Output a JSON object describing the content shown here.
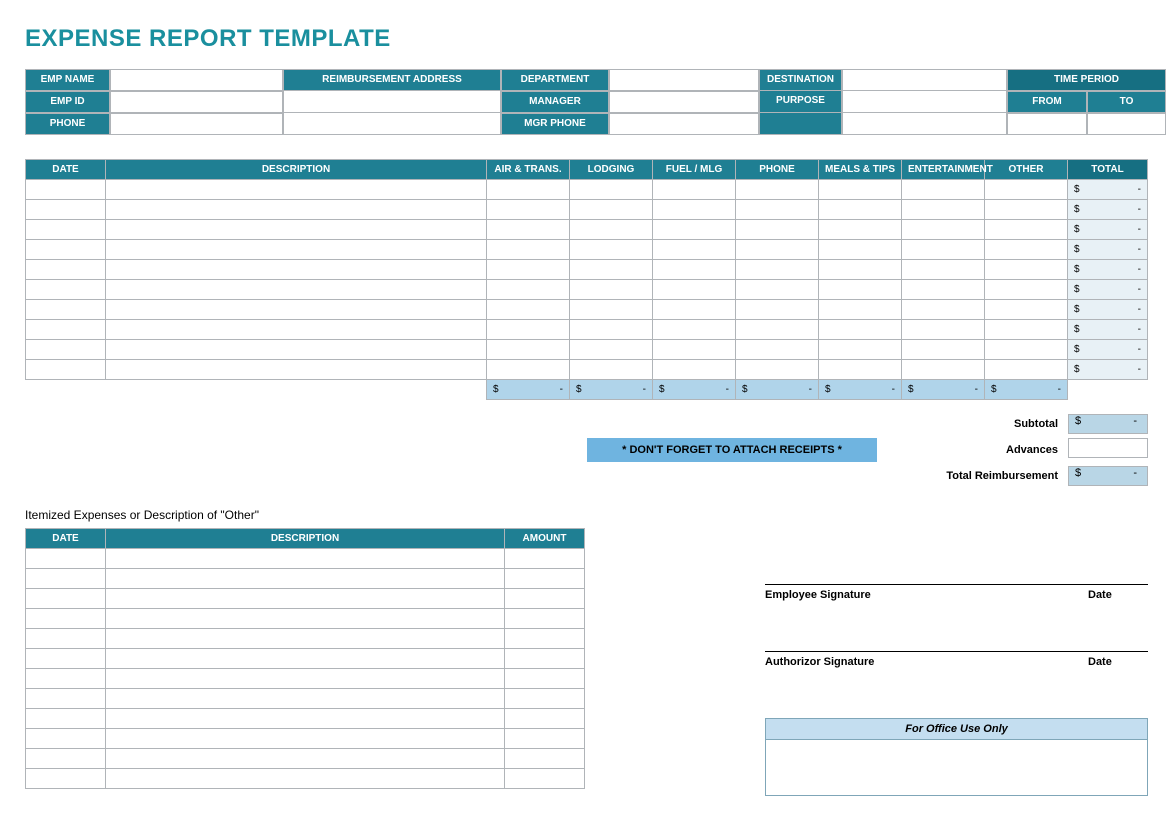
{
  "colors": {
    "title": "#1a8f9e",
    "header": "#1f7f93",
    "header_dark": "#166f82",
    "sum_row_bg": "#b0d4ea",
    "receipts_bg": "#6fb4e0",
    "office_bg": "#c4def0",
    "total_bg": "#e8f1f6",
    "subtotal_bg": "#b9d6e6",
    "reimb_bg": "#b9d6e6",
    "grid": "#b0b4b8"
  },
  "title": "EXPENSE REPORT TEMPLATE",
  "info": {
    "emp_name_label": "EMP NAME",
    "emp_id_label": "EMP ID",
    "phone_label": "PHONE",
    "reimb_label": "REIMBURSEMENT ADDRESS",
    "dept_label": "DEPARTMENT",
    "manager_label": "MANAGER",
    "mgrphone_label": "MGR PHONE",
    "dest_label": "DESTINATION",
    "purpose_label": "PURPOSE",
    "timeperiod_label": "TIME PERIOD",
    "from_label": "FROM",
    "to_label": "TO"
  },
  "expense": {
    "headers": {
      "date": "DATE",
      "desc": "DESCRIPTION",
      "air": "AIR & TRANS.",
      "lodging": "LODGING",
      "fuel": "FUEL / MLG",
      "phone": "PHONE",
      "meals": "MEALS & TIPS",
      "ent": "ENTERTAINMENT",
      "other": "OTHER",
      "total": "TOTAL"
    },
    "row_count": 10,
    "currency_symbol": "$",
    "empty_amount": "-",
    "col_sum_count": 7
  },
  "receipts_banner": "* DON'T FORGET TO ATTACH RECEIPTS *",
  "summary": {
    "subtotal_label": "Subtotal",
    "advances_label": "Advances",
    "reimb_label": "Total Reimbursement"
  },
  "itemized": {
    "title": "Itemized Expenses or Description of \"Other\"",
    "headers": {
      "date": "DATE",
      "desc": "DESCRIPTION",
      "amount": "AMOUNT"
    },
    "row_count": 12
  },
  "signatures": {
    "employee": "Employee Signature",
    "authorizor": "Authorizor Signature",
    "date": "Date"
  },
  "office_use": "For Office Use Only"
}
